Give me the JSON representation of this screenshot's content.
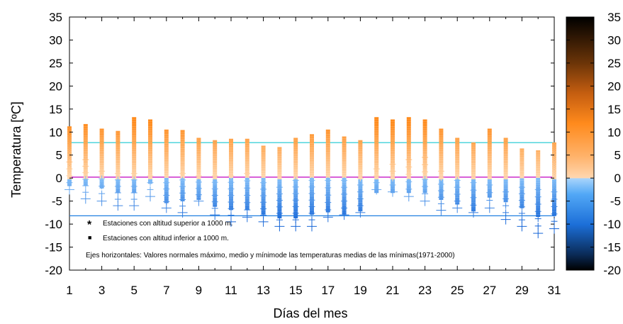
{
  "chart_data": {
    "type": "scatter",
    "xlabel": "Días del mes",
    "ylabel": "Temperatura  [ºC]",
    "xlim": [
      1,
      31
    ],
    "ylim": [
      -20,
      35
    ],
    "x_ticks": [
      1,
      3,
      5,
      7,
      9,
      11,
      13,
      15,
      17,
      19,
      21,
      23,
      25,
      27,
      29,
      31
    ],
    "y_ticks": [
      35,
      30,
      25,
      20,
      15,
      10,
      5,
      0,
      -5,
      -10,
      -15,
      -20
    ],
    "colorbar": {
      "range": [
        -20,
        35
      ],
      "ticks": [
        35,
        30,
        25,
        20,
        15,
        10,
        5,
        0,
        -5,
        -10,
        -15,
        -20
      ]
    },
    "reference_lines": [
      {
        "name": "max",
        "value": 7.7,
        "color": "#40d0d8"
      },
      {
        "name": "mean",
        "value": 0.2,
        "color": "#c000c0"
      },
      {
        "name": "min",
        "value": -8.2,
        "color": "#2080e0"
      }
    ],
    "legend": [
      {
        "symbol": "*",
        "label": "Estaciones con altitud superior  a  1000  m."
      },
      {
        "symbol": "■",
        "label": "Estaciones con altitud inferior a  1000  m."
      }
    ],
    "annotation": "Ejes horizontales: Valores normales máximo, medio y mínimode las temperaturas medias de las mínimas(1971-2000)",
    "days": [
      {
        "day": 1,
        "max": 11.0,
        "min": -1.5,
        "plus_max": 3.5,
        "plus_min": -2.5
      },
      {
        "day": 2,
        "max": 11.5,
        "min": -1.5,
        "plus_max": 4.0,
        "plus_min": -4.5
      },
      {
        "day": 3,
        "max": 10.5,
        "min": -2.0,
        "plus_max": 1.5,
        "plus_min": -5.0
      },
      {
        "day": 4,
        "max": 10.0,
        "min": -3.0,
        "plus_max": 1.0,
        "plus_min": -6.0
      },
      {
        "day": 5,
        "max": 13.0,
        "min": -3.0,
        "plus_max": 1.0,
        "plus_min": -6.0
      },
      {
        "day": 6,
        "max": 12.5,
        "min": -1.0,
        "plus_max": 0.5,
        "plus_min": -4.0
      },
      {
        "day": 7,
        "max": 10.3,
        "min": -5.5,
        "plus_max": -1.0,
        "plus_min": -6.5
      },
      {
        "day": 8,
        "max": 10.2,
        "min": -5.0,
        "plus_max": 1.0,
        "plus_min": -7.5
      },
      {
        "day": 9,
        "max": 8.5,
        "min": -4.5,
        "plus_max": 0.5,
        "plus_min": -5.0
      },
      {
        "day": 10,
        "max": 8.0,
        "min": -6.0,
        "plus_max": 0.5,
        "plus_min": -8.0
      },
      {
        "day": 11,
        "max": 8.3,
        "min": -7.0,
        "plus_max": 0.5,
        "plus_min": -9.5
      },
      {
        "day": 12,
        "max": 8.3,
        "min": -7.0,
        "plus_max": 1.0,
        "plus_min": -8.5
      },
      {
        "day": 13,
        "max": 6.8,
        "min": -8.0,
        "plus_max": -1.0,
        "plus_min": -9.5
      },
      {
        "day": 14,
        "max": 6.5,
        "min": -8.5,
        "plus_max": -2.0,
        "plus_min": -10.5
      },
      {
        "day": 15,
        "max": 8.5,
        "min": -8.5,
        "plus_max": -0.5,
        "plus_min": -10.5
      },
      {
        "day": 16,
        "max": 9.3,
        "min": -8.0,
        "plus_max": -0.5,
        "plus_min": -10.5
      },
      {
        "day": 17,
        "max": 10.3,
        "min": -7.5,
        "plus_max": -0.5,
        "plus_min": -8.5
      },
      {
        "day": 18,
        "max": 8.8,
        "min": -8.0,
        "plus_max": -0.5,
        "plus_min": -8.0
      },
      {
        "day": 19,
        "max": 8.0,
        "min": -7.0,
        "plus_max": 0.0,
        "plus_min": -7.5
      },
      {
        "day": 20,
        "max": 13.0,
        "min": -3.0,
        "plus_max": 2.0,
        "plus_min": -2.5
      },
      {
        "day": 21,
        "max": 12.5,
        "min": -3.0,
        "plus_max": 3.0,
        "plus_min": -3.0
      },
      {
        "day": 22,
        "max": 13.0,
        "min": -3.0,
        "plus_max": 4.0,
        "plus_min": -4.0
      },
      {
        "day": 23,
        "max": 12.5,
        "min": -3.0,
        "plus_max": 4.5,
        "plus_min": -5.0
      },
      {
        "day": 24,
        "max": 10.5,
        "min": -4.5,
        "plus_max": 1.5,
        "plus_min": -7.0
      },
      {
        "day": 25,
        "max": 8.5,
        "min": -5.5,
        "plus_max": -0.5,
        "plus_min": -6.5
      },
      {
        "day": 26,
        "max": 7.5,
        "min": -7.0,
        "plus_max": -1.0,
        "plus_min": -7.5
      },
      {
        "day": 27,
        "max": 10.5,
        "min": -4.0,
        "plus_max": -1.5,
        "plus_min": -6.5
      },
      {
        "day": 28,
        "max": 8.5,
        "min": -5.0,
        "plus_max": -3.0,
        "plus_min": -9.0
      },
      {
        "day": 29,
        "max": 6.2,
        "min": -6.5,
        "plus_max": -2.0,
        "plus_min": -10.5
      },
      {
        "day": 30,
        "max": 5.8,
        "min": -8.5,
        "plus_max": -2.5,
        "plus_min": -12.0
      },
      {
        "day": 31,
        "max": 7.5,
        "min": -8.0,
        "plus_max": -3.0,
        "plus_min": -11.0
      }
    ]
  }
}
